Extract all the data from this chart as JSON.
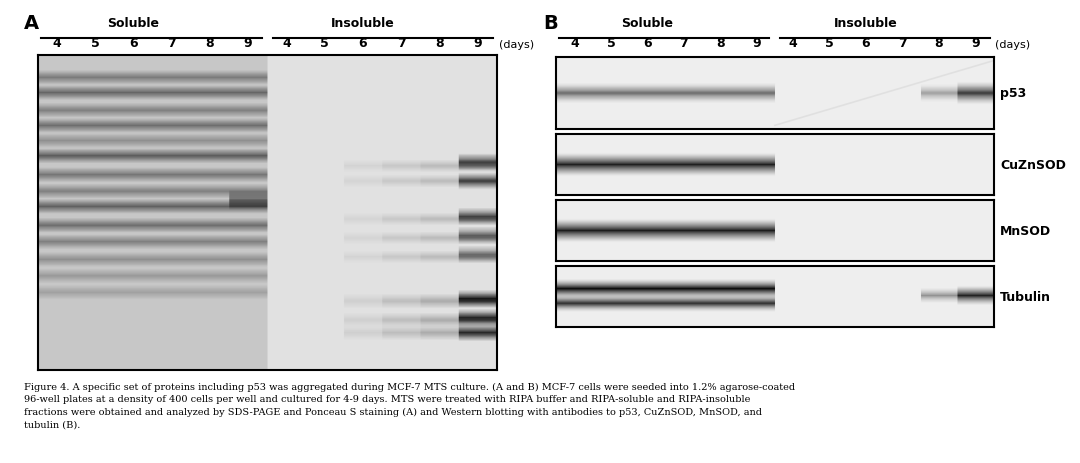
{
  "title_A": "A",
  "title_B": "B",
  "label_soluble": "Soluble",
  "label_insoluble": "Insoluble",
  "label_days": "(days)",
  "day_labels": [
    "4",
    "5",
    "6",
    "7",
    "8",
    "9"
  ],
  "protein_labels": [
    "p53",
    "CuZnSOD",
    "MnSOD",
    "Tubulin"
  ],
  "caption": "Figure 4. A specific set of proteins including p53 was aggregated during MCF-7 MTS culture. (A and B) MCF-7 cells were seeded into 1.2% agarose-coated\n96-well plates at a density of 400 cells per well and cultured for 4-9 days. MTS were treated with RIPA buffer and RIPA-soluble and RIPA-insoluble\nfractions were obtained and analyzed by SDS-PAGE and Ponceau S staining (A) and Western blotting with antibodies to p53, CuZnSOD, MnSOD, and\ntubulin (B).",
  "bg_color": "#ffffff",
  "text_color": "#000000"
}
